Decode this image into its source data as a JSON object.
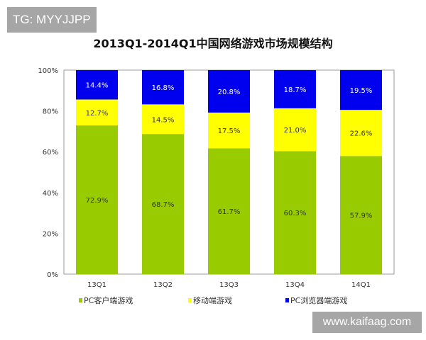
{
  "watermarks": {
    "top_left": "TG: MYYJJPP",
    "bottom_right": "www.kaifaag.com"
  },
  "chart_data": {
    "type": "bar",
    "stacked": true,
    "title": "2013Q1-2014Q1中国网络游戏市场规模结构",
    "categories": [
      "13Q1",
      "13Q2",
      "13Q3",
      "13Q4",
      "14Q1"
    ],
    "series": [
      {
        "name": "PC客户端游戏",
        "color": "#99cc00",
        "label_color": "#333333",
        "values": [
          72.9,
          68.7,
          61.7,
          60.3,
          57.9
        ],
        "labels": [
          "72.9%",
          "68.7%",
          "61.7%",
          "60.3%",
          "57.9%"
        ]
      },
      {
        "name": "移动端游戏",
        "color": "#ffff00",
        "label_color": "#333333",
        "values": [
          12.7,
          14.5,
          17.5,
          21.0,
          22.6
        ],
        "labels": [
          "12.7%",
          "14.5%",
          "17.5%",
          "21.0%",
          "22.6%"
        ]
      },
      {
        "name": "PC浏览器端游戏",
        "color": "#0000ee",
        "label_color": "#ffffff",
        "values": [
          14.4,
          16.8,
          20.8,
          18.7,
          19.5
        ],
        "labels": [
          "14.4%",
          "16.8%",
          "20.8%",
          "18.7%",
          "19.5%"
        ]
      }
    ],
    "yticks": [
      "0%",
      "20%",
      "40%",
      "60%",
      "80%",
      "100%"
    ],
    "ylim": [
      0,
      100
    ],
    "grid": false,
    "legend": "bottom",
    "xlabel": "",
    "ylabel": ""
  }
}
